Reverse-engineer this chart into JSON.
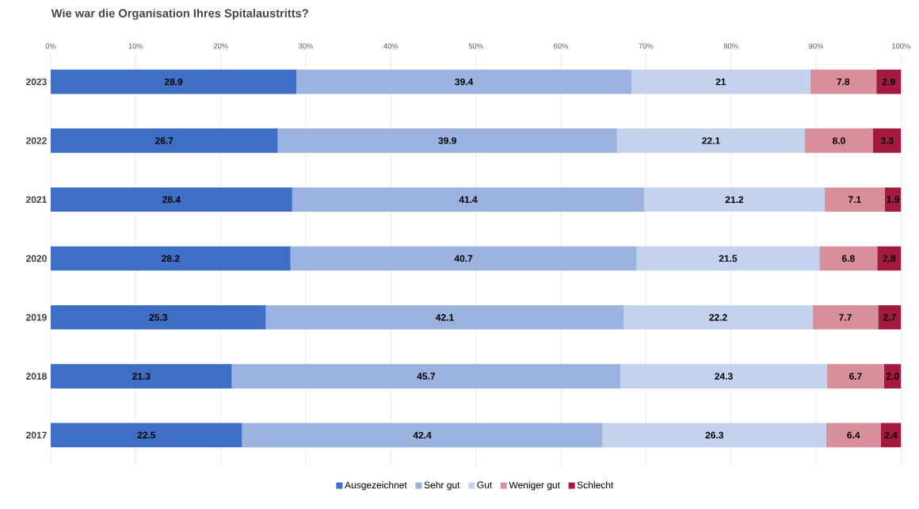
{
  "chart_data": {
    "type": "bar",
    "orientation": "horizontal",
    "stacked": true,
    "title": "Wie war die Organisation Ihres Spitalaustritts?",
    "categories": [
      "2023",
      "2022",
      "2021",
      "2020",
      "2019",
      "2018",
      "2017"
    ],
    "series": [
      {
        "name": "Ausgezeichnet",
        "color": "#3f6fc4",
        "values": [
          28.9,
          26.7,
          28.4,
          28.2,
          25.3,
          21.3,
          22.5
        ],
        "value_labels": [
          "28.9",
          "26.7",
          "28.4",
          "28.2",
          "25.3",
          "21.3",
          "22.5"
        ]
      },
      {
        "name": "Sehr gut",
        "color": "#9cb2df",
        "values": [
          39.4,
          39.9,
          41.4,
          40.7,
          42.1,
          45.7,
          42.4
        ],
        "value_labels": [
          "39.4",
          "39.9",
          "41.4",
          "40.7",
          "42.1",
          "45.7",
          "42.4"
        ]
      },
      {
        "name": "Gut",
        "color": "#c5d2ee",
        "values": [
          21,
          22.1,
          21.2,
          21.5,
          22.2,
          24.3,
          26.3
        ],
        "value_labels": [
          "21",
          "22.1",
          "21.2",
          "21.5",
          "22.2",
          "24.3",
          "26.3"
        ]
      },
      {
        "name": "Weniger gut",
        "color": "#d98e9c",
        "values": [
          7.8,
          8.0,
          7.1,
          6.8,
          7.7,
          6.7,
          6.4
        ],
        "value_labels": [
          "7.8",
          "8.0",
          "7.1",
          "6.8",
          "7.7",
          "6.7",
          "6.4"
        ]
      },
      {
        "name": "Schlecht",
        "color": "#a31a40",
        "values": [
          2.9,
          3.3,
          1.9,
          2.8,
          2.7,
          2.0,
          2.4
        ],
        "value_labels": [
          "2.9",
          "3.3",
          "1.9",
          "2.8",
          "2.7",
          "2.0",
          "2.4"
        ]
      }
    ],
    "xlim": [
      0,
      100
    ],
    "xticks": [
      {
        "value": 0,
        "label": "0%"
      },
      {
        "value": 10,
        "label": "10%"
      },
      {
        "value": 20,
        "label": "20%"
      },
      {
        "value": 30,
        "label": "30%"
      },
      {
        "value": 40,
        "label": "40%"
      },
      {
        "value": 50,
        "label": "50%"
      },
      {
        "value": 60,
        "label": "60%"
      },
      {
        "value": 70,
        "label": "70%"
      },
      {
        "value": 80,
        "label": "80%"
      },
      {
        "value": 90,
        "label": "90%"
      },
      {
        "value": 100,
        "label": "100%"
      }
    ],
    "grid": "x",
    "legend": "bottom"
  }
}
